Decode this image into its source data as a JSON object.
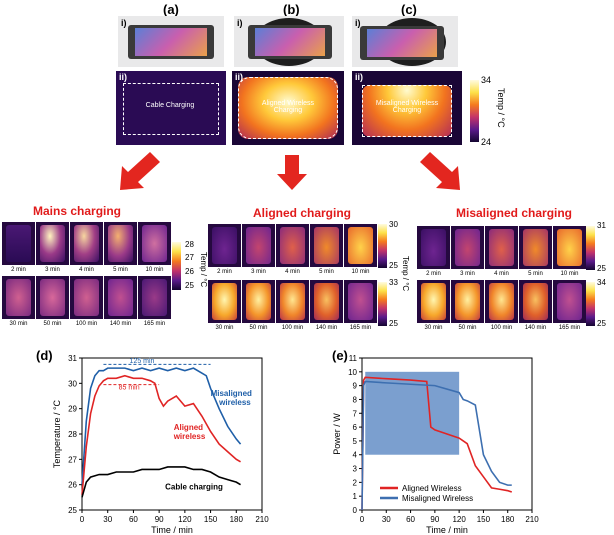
{
  "panels": {
    "a": "(a)",
    "b": "(b)",
    "c": "(c)",
    "d": "(d)",
    "e": "(e)",
    "sub_i": "i)",
    "sub_ii": "ii)"
  },
  "top_thermal": {
    "cable": "Cable Charging",
    "aligned": "Aligned Wireless Charging",
    "misaligned": "Misaligned Wireless Charging",
    "cbar_max": "34",
    "cbar_min": "24",
    "cbar_title": "Temp / °C"
  },
  "mains": {
    "title": "Mains charging",
    "times_row1": [
      "2 min",
      "3 min",
      "4 min",
      "5 min",
      "10 min"
    ],
    "times_row2": [
      "30 min",
      "50 min",
      "100 min",
      "140 min",
      "165 min"
    ],
    "cbar_ticks": [
      "28",
      "27",
      "26",
      "25"
    ],
    "cbar_title": "Temp / °C"
  },
  "aligned": {
    "title": "Aligned charging",
    "times_row1": [
      "2 min",
      "3 min",
      "4 min",
      "5 min",
      "10 min"
    ],
    "times_row2": [
      "30 min",
      "50 min",
      "100 min",
      "140 min",
      "165 min"
    ],
    "cbar1": [
      "30",
      "25"
    ],
    "cbar2": [
      "33",
      "25"
    ],
    "cbar_title": "Temp / °C"
  },
  "misaligned": {
    "title": "Misaligned charging",
    "times_row1": [
      "2 min",
      "3 min",
      "4 min",
      "5 min",
      "10 min"
    ],
    "times_row2": [
      "30 min",
      "50 min",
      "100 min",
      "140 min",
      "165 min"
    ],
    "cbar1": [
      "31",
      "25"
    ],
    "cbar2": [
      "34",
      "25"
    ],
    "cbar_title": "Temp / °C"
  },
  "chart_data": [
    {
      "type": "line",
      "xlabel": "Time / min",
      "ylabel": "Temperature / °C",
      "xlim": [
        0,
        210
      ],
      "ylim": [
        25,
        31
      ],
      "xticks": [
        0,
        30,
        60,
        90,
        120,
        150,
        180,
        210
      ],
      "yticks": [
        25,
        26,
        27,
        28,
        29,
        30,
        31
      ],
      "annotations": [
        "125 min",
        "85 min"
      ],
      "series": [
        {
          "name": "Misaligned wireless",
          "color": "#1f5fa8",
          "x": [
            0,
            5,
            10,
            15,
            20,
            25,
            30,
            40,
            50,
            60,
            70,
            80,
            90,
            100,
            110,
            120,
            130,
            140,
            145,
            150,
            160,
            170,
            180,
            185
          ],
          "y": [
            26.0,
            28.5,
            29.8,
            30.3,
            30.5,
            30.5,
            30.6,
            30.6,
            30.6,
            30.5,
            30.6,
            30.5,
            30.6,
            30.5,
            30.6,
            30.5,
            30.6,
            30.4,
            30.3,
            29.8,
            29.0,
            28.3,
            27.8,
            27.6
          ]
        },
        {
          "name": "Aligned wireless",
          "color": "#e02424",
          "x": [
            0,
            5,
            10,
            15,
            20,
            25,
            30,
            40,
            50,
            60,
            70,
            80,
            85,
            90,
            95,
            100,
            110,
            120,
            130,
            140,
            150,
            160,
            170,
            180,
            185
          ],
          "y": [
            25.6,
            27.5,
            28.8,
            29.5,
            29.9,
            30.1,
            30.2,
            30.2,
            30.3,
            30.2,
            30.2,
            30.1,
            30.0,
            29.4,
            29.1,
            29.3,
            29.5,
            29.1,
            29.2,
            28.7,
            28.1,
            27.6,
            27.3,
            27.0,
            26.9
          ]
        },
        {
          "name": "Cable charging",
          "color": "#000000",
          "x": [
            0,
            5,
            10,
            20,
            30,
            40,
            50,
            60,
            70,
            80,
            90,
            100,
            110,
            120,
            130,
            140,
            150,
            160,
            170,
            180,
            185
          ],
          "y": [
            25.5,
            26.1,
            26.3,
            26.4,
            26.4,
            26.5,
            26.5,
            26.5,
            26.6,
            26.6,
            26.6,
            26.7,
            26.7,
            26.7,
            26.6,
            26.6,
            26.5,
            26.3,
            26.2,
            26.1,
            26.0
          ]
        }
      ],
      "series_labels": [
        "Misaligned wireless",
        "Aligned wireless",
        "Cable charging"
      ]
    },
    {
      "type": "line",
      "xlabel": "Time / min",
      "ylabel": "Power / W",
      "xlim": [
        0,
        210
      ],
      "ylim": [
        0,
        11
      ],
      "xticks": [
        0,
        30,
        60,
        90,
        120,
        150,
        180,
        210
      ],
      "yticks": [
        0,
        1,
        2,
        3,
        4,
        5,
        6,
        7,
        8,
        9,
        10,
        11
      ],
      "legend": "bottom-left",
      "series": [
        {
          "name": "Aligned Wireless",
          "color": "#e02424",
          "x": [
            0,
            2,
            4,
            30,
            60,
            80,
            85,
            90,
            100,
            110,
            120,
            130,
            140,
            150,
            160,
            170,
            180,
            185
          ],
          "y": [
            0,
            9.4,
            9.6,
            9.5,
            9.4,
            9.3,
            6.0,
            5.8,
            5.6,
            5.4,
            5.2,
            4.8,
            3.2,
            2.4,
            1.6,
            1.5,
            1.4,
            1.3
          ]
        },
        {
          "name": "Misaligned Wireless",
          "color": "#3d6fb0",
          "x": [
            0,
            2,
            4,
            30,
            60,
            90,
            120,
            125,
            130,
            140,
            150,
            160,
            170,
            180,
            185
          ],
          "y": [
            0,
            9.0,
            9.3,
            9.2,
            9.1,
            9.0,
            8.5,
            8.0,
            7.9,
            7.6,
            4.0,
            2.8,
            2.0,
            1.8,
            1.8
          ]
        }
      ]
    }
  ]
}
